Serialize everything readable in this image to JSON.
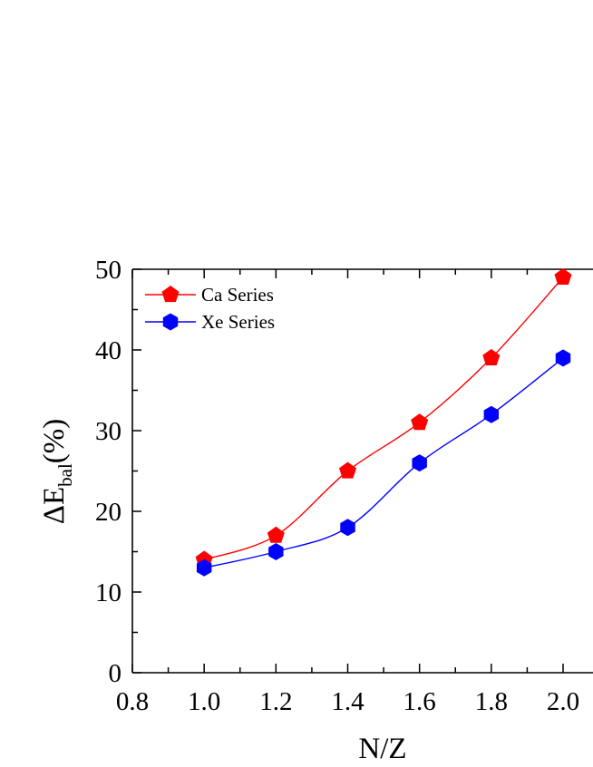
{
  "chart_data": {
    "type": "line",
    "x": [
      1.0,
      1.2,
      1.4,
      1.6,
      1.8,
      2.0
    ],
    "series": [
      {
        "name": "Ca Series",
        "color": "#ff0000",
        "marker": "pentagon",
        "values": [
          14,
          17,
          25,
          31,
          39,
          49
        ]
      },
      {
        "name": "Xe Series",
        "color": "#0000ff",
        "marker": "hexagon",
        "values": [
          13,
          15,
          18,
          26,
          32,
          39
        ]
      }
    ],
    "title": "",
    "xlabel": "N/Z",
    "ylabel_main": "ΔE",
    "ylabel_sub": "bal",
    "ylabel_tail": "(%)",
    "xlim": [
      0.8,
      2.0
    ],
    "ylim": [
      0,
      50
    ],
    "xticks": [
      "0.8",
      "1.0",
      "1.2",
      "1.4",
      "1.6",
      "1.8",
      "2.0"
    ],
    "yticks": [
      "0",
      "10",
      "20",
      "30",
      "40",
      "50"
    ],
    "grid": false,
    "legend_position": "top-left"
  }
}
